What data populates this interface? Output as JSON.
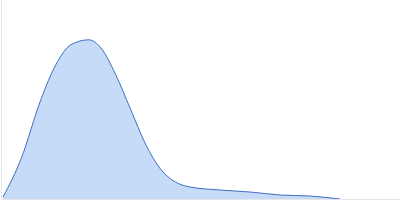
{
  "chart_data": {
    "type": "area",
    "color": "#c6dbf8",
    "x": [
      0.5,
      5,
      10,
      13.75,
      17.5,
      22,
      25,
      28.75,
      32.5,
      36.25,
      40,
      43.75,
      47.5,
      55,
      62.5,
      70,
      77.5,
      85
    ],
    "values": [
      0.01,
      0.2,
      0.5,
      0.675,
      0.775,
      0.8,
      0.76,
      0.625,
      0.45,
      0.275,
      0.15,
      0.085,
      0.06,
      0.045,
      0.035,
      0.02,
      0.015,
      0
    ],
    "xlim": [
      0,
      100
    ],
    "ylim": [
      0,
      1
    ],
    "tick_labels": false,
    "grid": false
  }
}
